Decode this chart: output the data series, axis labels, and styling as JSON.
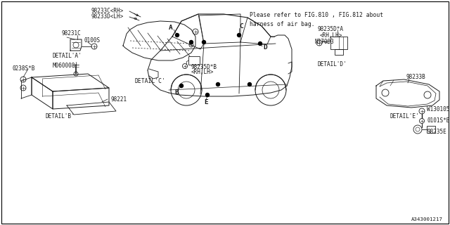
{
  "background_color": "#ffffff",
  "border_color": "#000000",
  "line_color": "#1a1a1a",
  "text_color": "#1a1a1a",
  "font_size": 5.8,
  "diagram_id": "A343001217",
  "note_text": "Please refer to FIG.810 , FIG.812 about\nharness of air bag.",
  "detail_a": "DETAIL*A*",
  "detail_b": "DETAIL*B*",
  "detail_c": "DETAIL*C*",
  "detail_d": "DETAIL*D*",
  "detail_e": "DETAIL*E*"
}
